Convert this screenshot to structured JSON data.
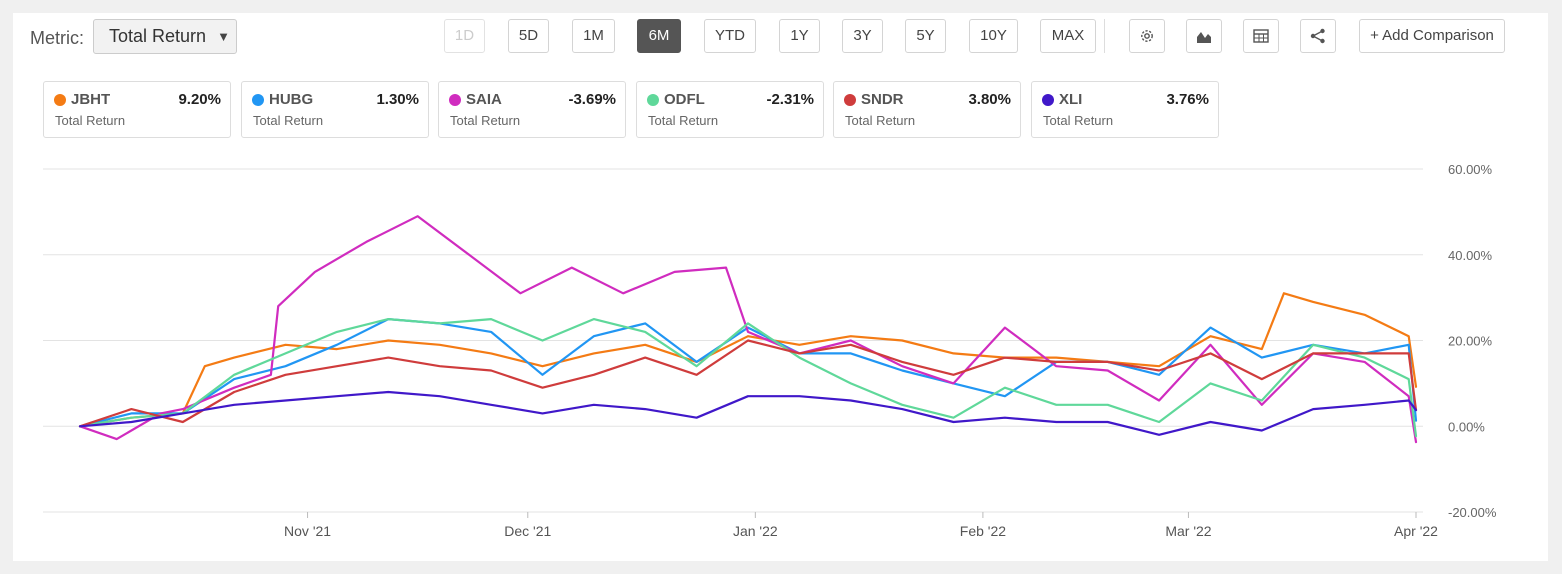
{
  "metric": {
    "label": "Metric:",
    "value": "Total Return",
    "arrow": "▼"
  },
  "ranges": [
    {
      "label": "1D",
      "state": "disabled"
    },
    {
      "label": "5D",
      "state": "normal"
    },
    {
      "label": "1M",
      "state": "normal"
    },
    {
      "label": "6M",
      "state": "active"
    },
    {
      "label": "YTD",
      "state": "normal"
    },
    {
      "label": "1Y",
      "state": "normal"
    },
    {
      "label": "3Y",
      "state": "normal"
    },
    {
      "label": "5Y",
      "state": "normal"
    },
    {
      "label": "10Y",
      "state": "normal"
    },
    {
      "label": "MAX",
      "state": "normal"
    }
  ],
  "tools": [
    "gear-icon",
    "mountain-chart-icon",
    "table-icon",
    "share-icon"
  ],
  "add_comparison": "+ Add Comparison",
  "cards": [
    {
      "ticker": "JBHT",
      "value": "9.20%",
      "sub": "Total Return",
      "color": "#f47b14"
    },
    {
      "ticker": "HUBG",
      "value": "1.30%",
      "sub": "Total Return",
      "color": "#2196f3"
    },
    {
      "ticker": "SAIA",
      "value": "-3.69%",
      "sub": "Total Return",
      "color": "#d02cbf"
    },
    {
      "ticker": "ODFL",
      "value": "-2.31%",
      "sub": "Total Return",
      "color": "#5fd89a"
    },
    {
      "ticker": "SNDR",
      "value": "3.80%",
      "sub": "Total Return",
      "color": "#cf3c3c"
    },
    {
      "ticker": "XLI",
      "value": "3.76%",
      "sub": "Total Return",
      "color": "#4018c9"
    }
  ],
  "chart_data": {
    "type": "line",
    "ylim": [
      -20,
      60
    ],
    "yticks": [
      "60.00%",
      "40.00%",
      "20.00%",
      "0.00%",
      "-20.00%"
    ],
    "xticks": [
      "Nov '21",
      "Dec '21",
      "Jan '22",
      "Feb '22",
      "Mar '22",
      "Apr '22"
    ],
    "xtick_dates": [
      "2021-11-01",
      "2021-12-01",
      "2022-01-01",
      "2022-02-01",
      "2022-03-01",
      "2022-04-01"
    ],
    "grid": true,
    "series": [
      {
        "name": "JBHT",
        "color": "#f47b14",
        "x": [
          "2021-10-01",
          "2021-10-08",
          "2021-10-15",
          "2021-10-18",
          "2021-10-22",
          "2021-10-29",
          "2021-11-05",
          "2021-11-12",
          "2021-11-19",
          "2021-11-26",
          "2021-12-03",
          "2021-12-10",
          "2021-12-17",
          "2021-12-24",
          "2021-12-31",
          "2022-01-07",
          "2022-01-14",
          "2022-01-21",
          "2022-01-28",
          "2022-02-04",
          "2022-02-11",
          "2022-02-18",
          "2022-02-25",
          "2022-03-04",
          "2022-03-11",
          "2022-03-14",
          "2022-03-18",
          "2022-03-25",
          "2022-03-31",
          "2022-04-01"
        ],
        "y": [
          0,
          2,
          3,
          14,
          16,
          19,
          18,
          20,
          19,
          17,
          14,
          17,
          19,
          15,
          21,
          19,
          21,
          20,
          17,
          16,
          16,
          15,
          14,
          21,
          18,
          31,
          29,
          26,
          21,
          9.2
        ]
      },
      {
        "name": "HUBG",
        "color": "#2196f3",
        "x": [
          "2021-10-01",
          "2021-10-08",
          "2021-10-15",
          "2021-10-22",
          "2021-10-29",
          "2021-11-05",
          "2021-11-12",
          "2021-11-19",
          "2021-11-26",
          "2021-12-03",
          "2021-12-10",
          "2021-12-17",
          "2021-12-24",
          "2021-12-31",
          "2022-01-07",
          "2022-01-14",
          "2022-01-21",
          "2022-01-28",
          "2022-02-04",
          "2022-02-11",
          "2022-02-18",
          "2022-02-25",
          "2022-03-04",
          "2022-03-11",
          "2022-03-18",
          "2022-03-25",
          "2022-03-31",
          "2022-04-01"
        ],
        "y": [
          0,
          3,
          3,
          11,
          14,
          19,
          25,
          24,
          22,
          12,
          21,
          24,
          15,
          23,
          17,
          17,
          13,
          10,
          7,
          15,
          15,
          12,
          23,
          16,
          19,
          17,
          19,
          1.3
        ]
      },
      {
        "name": "SAIA",
        "color": "#d02cbf",
        "x": [
          "2021-10-01",
          "2021-10-06",
          "2021-10-12",
          "2021-10-15",
          "2021-10-22",
          "2021-10-27",
          "2021-10-28",
          "2021-11-02",
          "2021-11-09",
          "2021-11-16",
          "2021-11-23",
          "2021-11-30",
          "2021-12-07",
          "2021-12-14",
          "2021-12-21",
          "2021-12-28",
          "2021-12-31",
          "2022-01-07",
          "2022-01-14",
          "2022-01-21",
          "2022-01-28",
          "2022-02-04",
          "2022-02-11",
          "2022-02-18",
          "2022-02-25",
          "2022-03-04",
          "2022-03-11",
          "2022-03-18",
          "2022-03-25",
          "2022-03-31",
          "2022-04-01"
        ],
        "y": [
          0,
          -3,
          3,
          4,
          9,
          12,
          28,
          36,
          43,
          49,
          40,
          31,
          37,
          31,
          36,
          37,
          22,
          17,
          20,
          14,
          10,
          23,
          14,
          13,
          6,
          19,
          5,
          17,
          15,
          7,
          -3.69
        ]
      },
      {
        "name": "ODFL",
        "color": "#5fd89a",
        "x": [
          "2021-10-01",
          "2021-10-08",
          "2021-10-15",
          "2021-10-22",
          "2021-10-29",
          "2021-11-05",
          "2021-11-12",
          "2021-11-19",
          "2021-11-26",
          "2021-12-03",
          "2021-12-10",
          "2021-12-17",
          "2021-12-24",
          "2021-12-31",
          "2022-01-07",
          "2022-01-14",
          "2022-01-21",
          "2022-01-28",
          "2022-02-04",
          "2022-02-11",
          "2022-02-18",
          "2022-02-25",
          "2022-03-04",
          "2022-03-11",
          "2022-03-18",
          "2022-03-25",
          "2022-03-31",
          "2022-04-01"
        ],
        "y": [
          0,
          2,
          3,
          12,
          17,
          22,
          25,
          24,
          25,
          20,
          25,
          22,
          14,
          24,
          16,
          10,
          5,
          2,
          9,
          5,
          5,
          1,
          10,
          6,
          19,
          16,
          11,
          -2.31
        ]
      },
      {
        "name": "SNDR",
        "color": "#cf3c3c",
        "x": [
          "2021-10-01",
          "2021-10-08",
          "2021-10-15",
          "2021-10-22",
          "2021-10-29",
          "2021-11-05",
          "2021-11-12",
          "2021-11-19",
          "2021-11-26",
          "2021-12-03",
          "2021-12-10",
          "2021-12-17",
          "2021-12-24",
          "2021-12-31",
          "2022-01-07",
          "2022-01-14",
          "2022-01-21",
          "2022-01-28",
          "2022-02-04",
          "2022-02-11",
          "2022-02-18",
          "2022-02-25",
          "2022-03-04",
          "2022-03-11",
          "2022-03-18",
          "2022-03-25",
          "2022-03-31",
          "2022-04-01"
        ],
        "y": [
          0,
          4,
          1,
          8,
          12,
          14,
          16,
          14,
          13,
          9,
          12,
          16,
          12,
          20,
          17,
          19,
          15,
          12,
          16,
          15,
          15,
          13,
          17,
          11,
          17,
          17,
          17,
          3.8
        ]
      },
      {
        "name": "XLI",
        "color": "#4018c9",
        "x": [
          "2021-10-01",
          "2021-10-08",
          "2021-10-15",
          "2021-10-22",
          "2021-10-29",
          "2021-11-05",
          "2021-11-12",
          "2021-11-19",
          "2021-11-26",
          "2021-12-03",
          "2021-12-10",
          "2021-12-17",
          "2021-12-24",
          "2021-12-31",
          "2022-01-07",
          "2022-01-14",
          "2022-01-21",
          "2022-01-28",
          "2022-02-04",
          "2022-02-11",
          "2022-02-18",
          "2022-02-25",
          "2022-03-04",
          "2022-03-11",
          "2022-03-18",
          "2022-03-25",
          "2022-03-31",
          "2022-04-01"
        ],
        "y": [
          0,
          1,
          3,
          5,
          6,
          7,
          8,
          7,
          5,
          3,
          5,
          4,
          2,
          7,
          7,
          6,
          4,
          1,
          2,
          1,
          1,
          -2,
          1,
          -1,
          4,
          5,
          6,
          3.76
        ]
      }
    ]
  }
}
